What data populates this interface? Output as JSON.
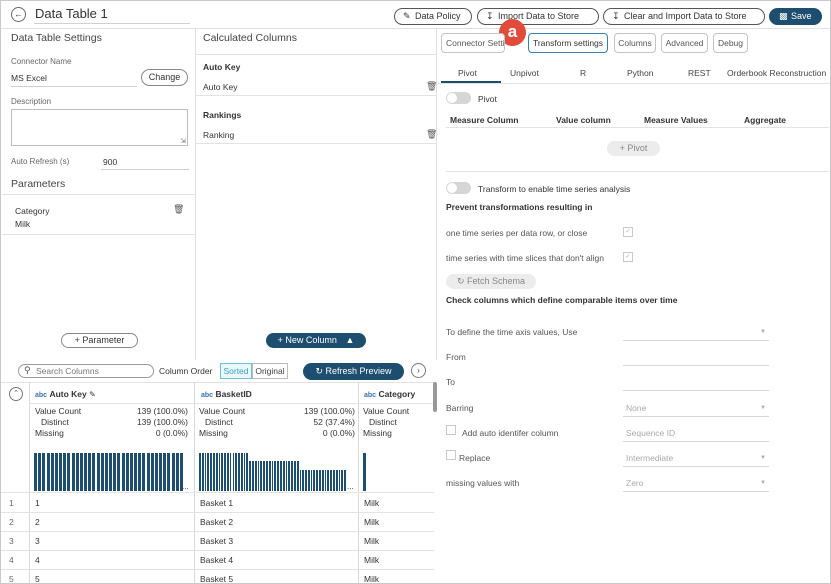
{
  "header": {
    "title": "Data Table 1",
    "buttons": {
      "data_policy": "Data Policy",
      "import": "Import Data to Store",
      "clear_import": "Clear and Import Data to Store",
      "save": "Save"
    },
    "callout": "a"
  },
  "left": {
    "section_title": "Data Table Settings",
    "connector_label": "Connector Name",
    "connector_value": "MS Excel",
    "change_button": "Change",
    "description_label": "Description",
    "description_value": "",
    "refresh_label": "Auto Refresh (s)",
    "refresh_value": "900",
    "parameters_title": "Parameters",
    "parameter": {
      "name": "Category",
      "value": "Milk"
    },
    "add_parameter": "Parameter"
  },
  "middle": {
    "section_title": "Calculated Columns",
    "groups": [
      {
        "title": "Auto Key",
        "item": "Auto Key"
      },
      {
        "title": "Rankings",
        "item": "Ranking"
      }
    ],
    "new_column": "New Column"
  },
  "right": {
    "tabs": [
      "Connector Settings",
      "Transform settings",
      "Columns",
      "Advanced",
      "Debug"
    ],
    "active_tab": "Transform settings",
    "subtabs": [
      "Pivot",
      "Unpivot",
      "R",
      "Python",
      "REST",
      "Orderbook Reconstruction"
    ],
    "active_subtab": "Pivot",
    "pivot_toggle": "Pivot",
    "pivot_headers": [
      "Measure Column",
      "Value column",
      "Measure Values",
      "Aggregate"
    ],
    "pivot_button": "Pivot",
    "ts_toggle": "Transform to enable time series analysis",
    "prevent_title": "Prevent transformations resulting in",
    "prevent_items": [
      "one time series per data row, or close",
      "time series with time slices that don't align"
    ],
    "fetch_schema": "Fetch Schema",
    "check_title": "Check columns which define comparable items over time",
    "time_axis_label": "To define the time axis values, Use",
    "from_label": "From",
    "to_label": "To",
    "barring_label": "Barring",
    "barring_value": "None",
    "auto_id_label": "Add auto identifer column",
    "auto_id_placeholder": "Sequence ID",
    "replace_label": "Replace",
    "replace_value": "Intermediate",
    "missing_label": "missing values with",
    "missing_value": "Zero"
  },
  "table": {
    "search_placeholder": "Search Columns",
    "column_order_label": "Column Order",
    "sorted": "Sorted",
    "original": "Original",
    "refresh_preview": "Refresh Preview",
    "columns": [
      {
        "type": "abc",
        "name": "Auto Key",
        "stats": [
          {
            "label": "Value Count",
            "value": "139 (100.0%)"
          },
          {
            "label": "Distinct",
            "value": "139 (100.0%)"
          },
          {
            "label": "Missing",
            "value": "0 (0.0%)"
          }
        ],
        "histogram": [
          1,
          1,
          1,
          1,
          1,
          1,
          1,
          1,
          1,
          1,
          1,
          1,
          1,
          1,
          1,
          1,
          1,
          1,
          1,
          1,
          1,
          1,
          1,
          1,
          1,
          1,
          1,
          1,
          1,
          1,
          1,
          1,
          1,
          1,
          1,
          1
        ]
      },
      {
        "type": "abc",
        "name": "BasketID",
        "stats": [
          {
            "label": "Value Count",
            "value": "139 (100.0%)"
          },
          {
            "label": "Distinct",
            "value": "52 (37.4%)"
          },
          {
            "label": "Missing",
            "value": "0 (0.0%)"
          }
        ],
        "histogram": [
          1,
          1,
          1,
          1,
          1,
          1,
          1,
          1,
          1,
          1,
          1,
          1,
          1,
          1,
          1,
          1,
          1,
          1,
          0.8,
          0.8,
          0.8,
          0.8,
          0.8,
          0.8,
          0.8,
          0.8,
          0.8,
          0.8,
          0.8,
          0.8,
          0.8,
          0.8,
          0.8,
          0.8,
          0.8,
          0.8,
          0.55,
          0.55,
          0.55,
          0.55,
          0.55,
          0.55,
          0.55,
          0.55,
          0.55,
          0.55,
          0.55,
          0.55,
          0.55,
          0.55,
          0.55,
          0.55,
          0.55
        ]
      },
      {
        "type": "abc",
        "name": "Category",
        "stats": [
          {
            "label": "Value Count",
            "value": ""
          },
          {
            "label": "Distinct",
            "value": ""
          },
          {
            "label": "Missing",
            "value": ""
          }
        ],
        "histogram": [
          1
        ]
      }
    ],
    "rows": [
      [
        "1",
        "1",
        "Basket 1",
        "Milk"
      ],
      [
        "2",
        "2",
        "Basket 2",
        "Milk"
      ],
      [
        "3",
        "3",
        "Basket 3",
        "Milk"
      ],
      [
        "4",
        "4",
        "Basket 4",
        "Milk"
      ],
      [
        "5",
        "5",
        "Basket 5",
        "Milk"
      ]
    ],
    "ellipsis": "..."
  },
  "colors": {
    "accent": "#1d4e6f",
    "callout": "#e04b3a",
    "active_tab_border": "#3b7fb2"
  }
}
